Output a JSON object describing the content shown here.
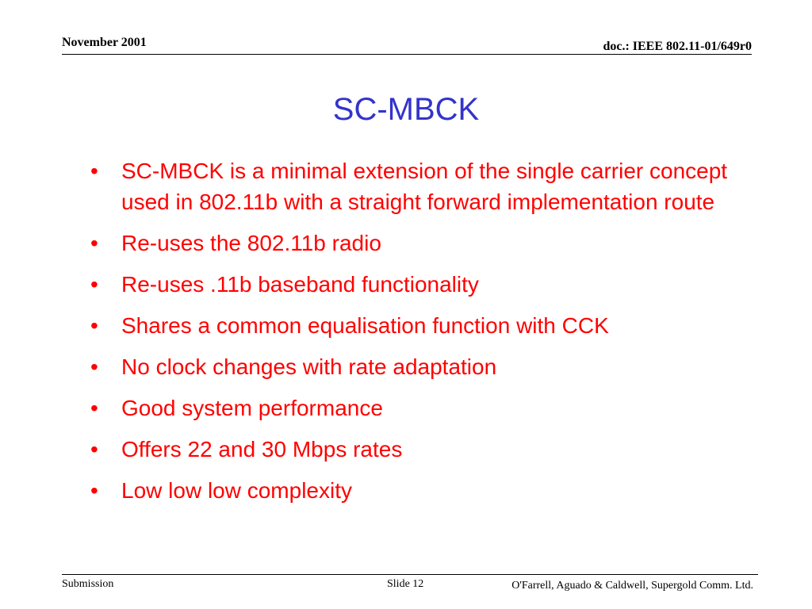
{
  "header": {
    "date": "November 2001",
    "doc_id": "doc.: IEEE 802.11-01/649r0"
  },
  "slide": {
    "title": "SC-MBCK",
    "bullet_symbol": "•",
    "bullets": [
      "SC-MBCK is a minimal extension of the single carrier concept used in 802.11b with a straight forward implementation route",
      "Re-uses the 802.11b radio",
      "Re-uses .11b baseband functionality",
      "Shares a common equalisation function with CCK",
      "No clock changes with rate adaptation",
      "Good system performance",
      "Offers 22 and 30 Mbps rates",
      "Low low low complexity"
    ]
  },
  "footer": {
    "submission": "Submission",
    "slide_number": "Slide 12",
    "authors": "O'Farrell, Aguado & Caldwell, Supergold Comm. Ltd."
  },
  "colors": {
    "title": "#3333cc",
    "bullets": "#ff0000",
    "text": "#000000"
  }
}
